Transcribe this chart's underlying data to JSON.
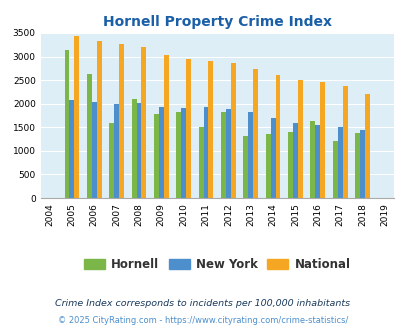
{
  "title": "Hornell Property Crime Index",
  "years": [
    2004,
    2005,
    2006,
    2007,
    2008,
    2009,
    2010,
    2011,
    2012,
    2013,
    2014,
    2015,
    2016,
    2017,
    2018,
    2019
  ],
  "hornell": [
    null,
    3140,
    2630,
    1590,
    2110,
    1790,
    1820,
    1500,
    1830,
    1310,
    1360,
    1400,
    1630,
    1200,
    1370,
    null
  ],
  "new_york": [
    null,
    2080,
    2040,
    1990,
    2020,
    1940,
    1910,
    1920,
    1890,
    1820,
    1700,
    1590,
    1550,
    1500,
    1440,
    null
  ],
  "national": [
    null,
    3430,
    3340,
    3270,
    3210,
    3040,
    2950,
    2900,
    2860,
    2730,
    2600,
    2500,
    2470,
    2380,
    2200,
    null
  ],
  "hornell_color": "#7ab648",
  "new_york_color": "#4d8fcc",
  "national_color": "#f5a623",
  "bg_color": "#ddeef6",
  "ylim": [
    0,
    3500
  ],
  "yticks": [
    0,
    500,
    1000,
    1500,
    2000,
    2500,
    3000,
    3500
  ],
  "legend_labels": [
    "Hornell",
    "New York",
    "National"
  ],
  "footnote1": "Crime Index corresponds to incidents per 100,000 inhabitants",
  "footnote2": "© 2025 CityRating.com - https://www.cityrating.com/crime-statistics/",
  "title_color": "#1a5fa8",
  "legend_text_color": "#333333",
  "footnote1_color": "#1a3a5c",
  "footnote2_color": "#4d8fcc"
}
